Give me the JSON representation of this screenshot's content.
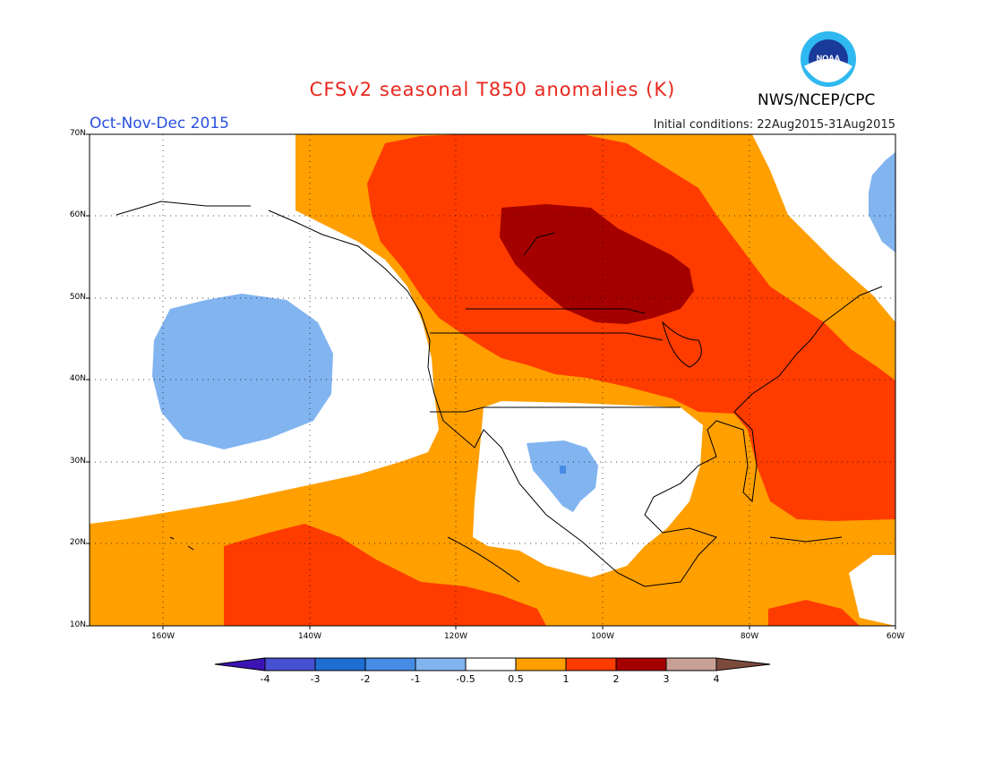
{
  "title": "CFSv2 seasonal T850 anomalies (K)",
  "period": "Oct-Nov-Dec 2015",
  "initial_conditions": "Initial conditions: 22Aug2015-31Aug2015",
  "agency": "NWS/NCEP/CPC",
  "logo_text": "NOAA",
  "map": {
    "lat_labels": [
      "70N",
      "60N",
      "50N",
      "40N",
      "30N",
      "20N",
      "10N"
    ],
    "lon_labels": [
      "160W",
      "140W",
      "120W",
      "100W",
      "80W",
      "60W"
    ]
  },
  "colorbar": {
    "labels": [
      "-4",
      "-3",
      "-2",
      "-1",
      "-0.5",
      "0.5",
      "1",
      "2",
      "3",
      "4"
    ],
    "colors": [
      "#3c14b4",
      "#4650d2",
      "#1e6ed2",
      "#468ce6",
      "#82b4f0",
      "#ffffff",
      "#ff9f00",
      "#ff3c00",
      "#a50000",
      "#c8a096",
      "#7d4b3c"
    ]
  },
  "colors": {
    "title": "#e8281e",
    "period": "#2850e0",
    "anomaly_0_5_to_1": "#ff9f00",
    "anomaly_1_to_2": "#ff3c00",
    "anomaly_2_to_3": "#a50000",
    "anomaly_neg_0_5_to_neg_1": "#82b4f0",
    "anomaly_neg_1_to_neg_2": "#468ce6"
  }
}
